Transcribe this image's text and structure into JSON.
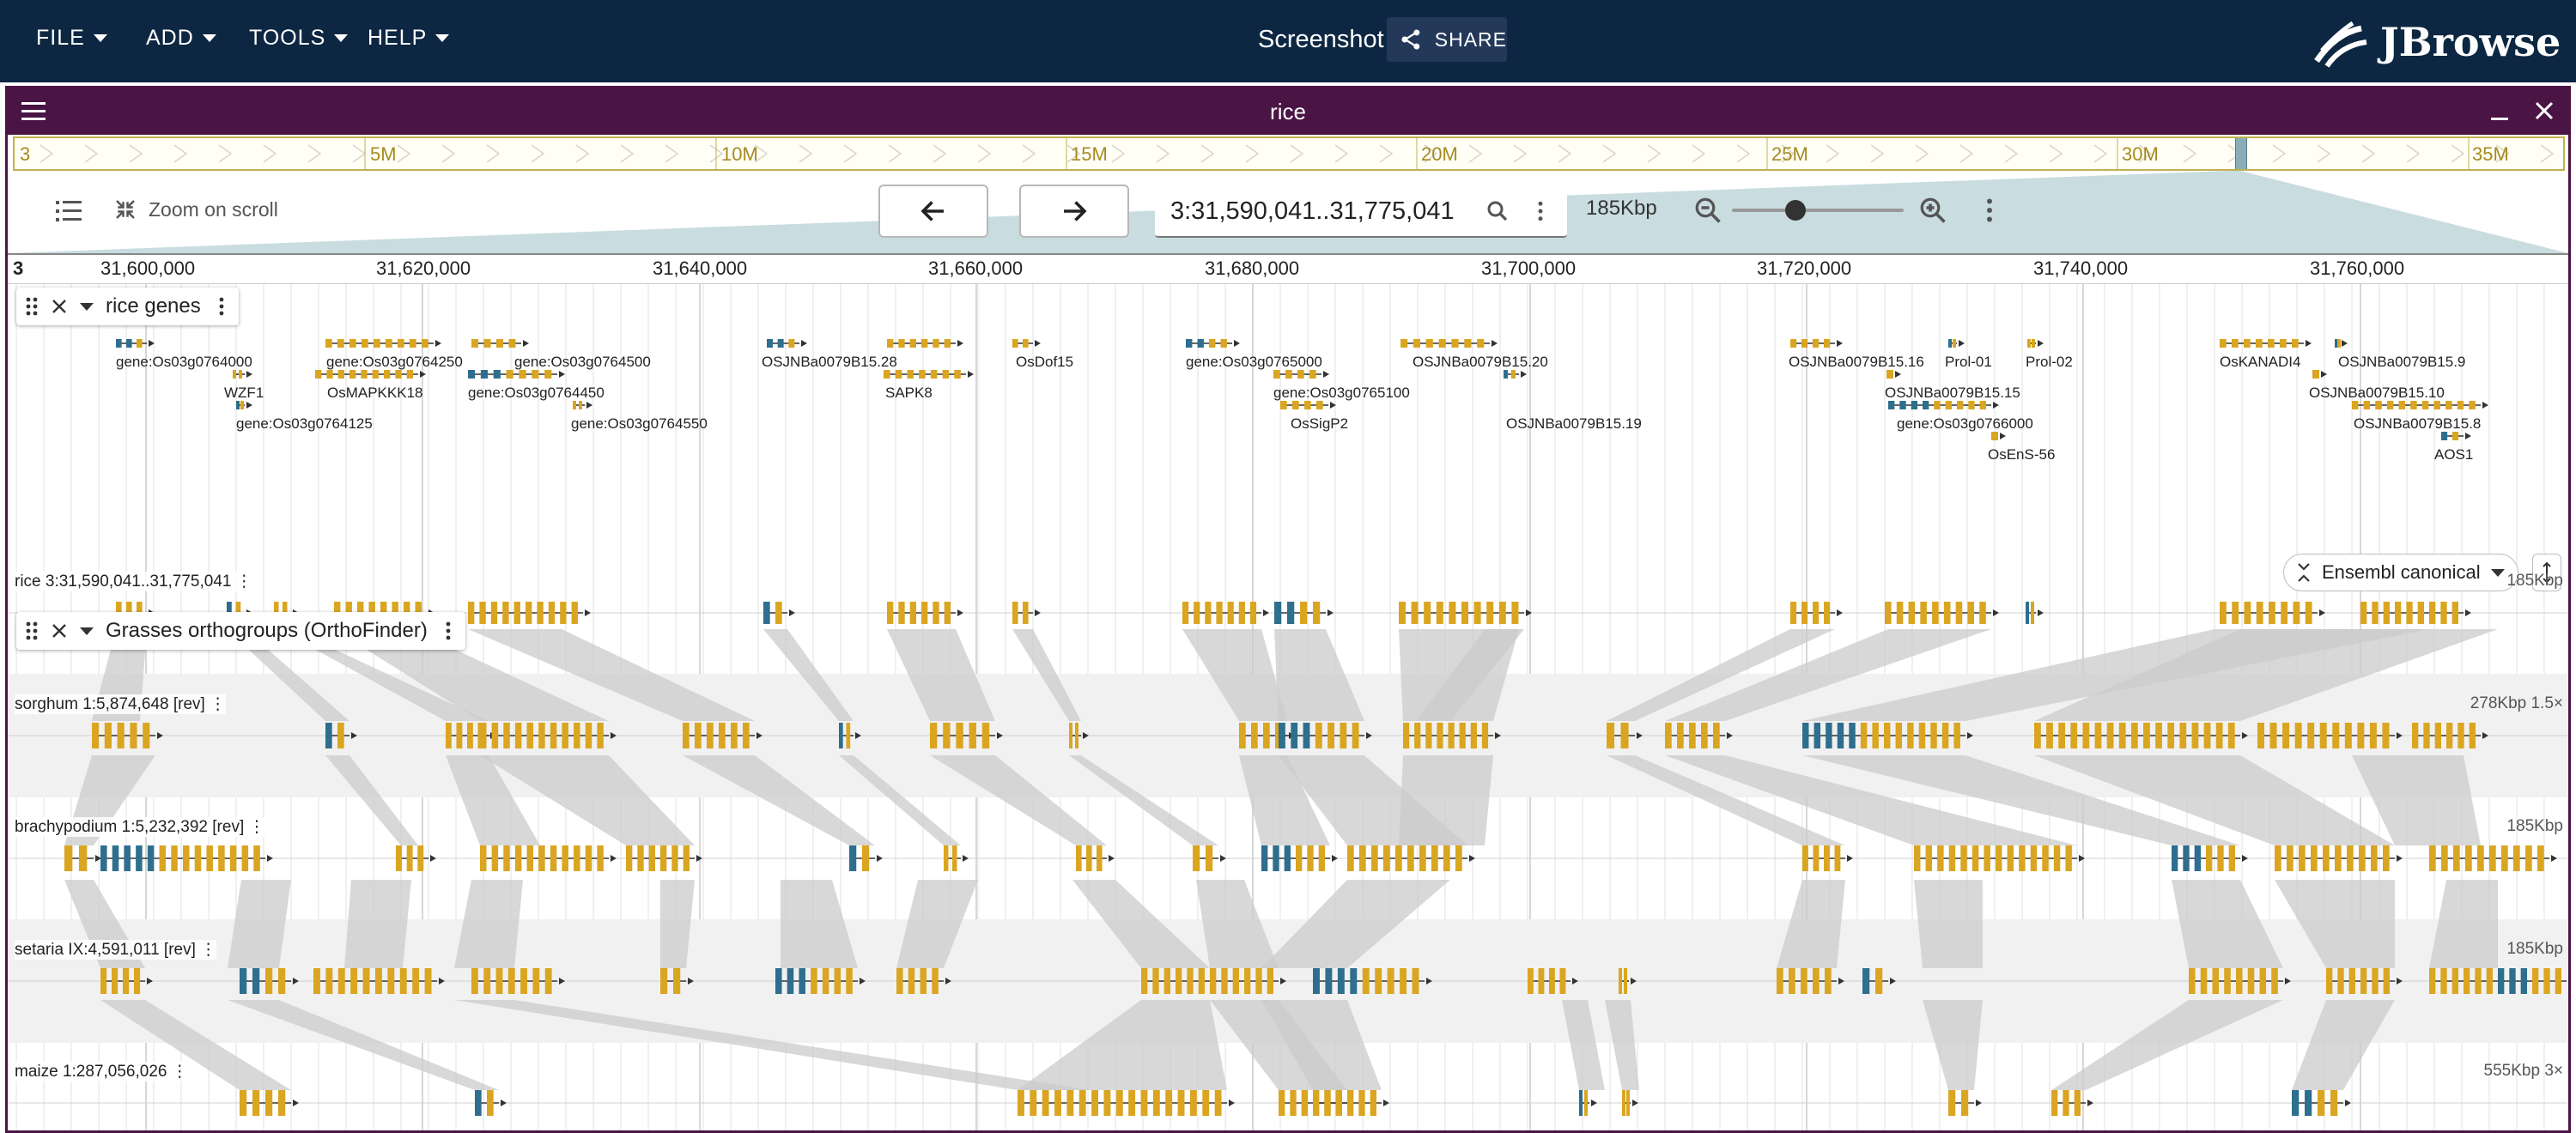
{
  "app": {
    "menus": [
      {
        "label": "FILE"
      },
      {
        "label": "ADD"
      },
      {
        "label": "TOOLS"
      },
      {
        "label": "HELP"
      }
    ],
    "session_title": "Screenshot",
    "share_label": "SHARE",
    "logo_text": "JBrowse"
  },
  "view": {
    "name": "rice",
    "overview_labels": [
      "3",
      "5M",
      "10M",
      "15M",
      "20M",
      "25M",
      "30M",
      "35M"
    ],
    "zoom_on_scroll": "Zoom on scroll",
    "location": "3:31,590,041..31,775,041",
    "bp_size": "185Kbp",
    "ruler_chrom": "3",
    "ruler_ticks": [
      "31,600,000",
      "31,620,000",
      "31,640,000",
      "31,660,000",
      "31,680,000",
      "31,700,000",
      "31,720,000",
      "31,740,000",
      "31,760,000"
    ]
  },
  "tracks": {
    "genes": {
      "title": "rice genes",
      "display_mode": "Ensembl canonical",
      "gene_labels": [
        "gene:Os03g0764000",
        "WZF1",
        "gene:Os03g0764125",
        "gene:Os03g0764250",
        "OsMAPKKK18",
        "gene:Os03g0764500",
        "gene:Os03g0764450",
        "gene:Os03g0764550",
        "OSJNBa0079B15.28",
        "SAPK8",
        "OsDof15",
        "gene:Os03g0765000",
        "gene:Os03g0765100",
        "OsSigP2",
        "OSJNBa0079B15.20",
        "OSJNBa0079B15.19",
        "OSJNBa0079B15.16",
        "OSJNBa0079B15.15",
        "gene:Os03g0766000",
        "Prol-01",
        "Prol-02",
        "OsEnS-56",
        "OsKANADI4",
        "OSJNBa0079B15.9",
        "OSJNBa0079B15.10",
        "OSJNBa0079B15.8",
        "AOS1"
      ]
    },
    "synteny": {
      "title": "Grasses orthogroups (OrthoFinder)",
      "rows": [
        {
          "label": "rice 3:31,590,041..31,775,041",
          "size": "185Kbp"
        },
        {
          "label": "sorghum 1:5,874,648 [rev]",
          "size": "278Kbp 1.5×"
        },
        {
          "label": "brachypodium 1:5,232,392 [rev]",
          "size": "185Kbp"
        },
        {
          "label": "setaria IX:4,591,011 [rev]",
          "size": "185Kbp"
        },
        {
          "label": "maize 1:287,056,026",
          "size": "555Kbp 3×"
        }
      ]
    }
  },
  "colors": {
    "topbar": "#0d2742",
    "view_border": "#4a1445",
    "exon_yellow": "#daa520",
    "exon_blue": "#2e6e8e",
    "synteny_band": "#c8c8c8"
  }
}
